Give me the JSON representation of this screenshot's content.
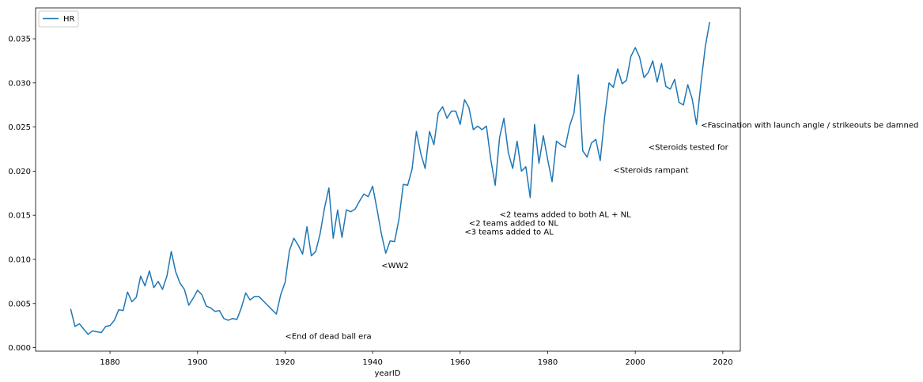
{
  "chart_data": {
    "type": "line",
    "xlabel": "yearID",
    "ylabel": "",
    "xlim": [
      1863,
      2024
    ],
    "ylim": [
      -0.0004,
      0.0385
    ],
    "xticks": [
      1880,
      1900,
      1920,
      1940,
      1960,
      1980,
      2000,
      2020
    ],
    "yticks": [
      0.0,
      0.005,
      0.01,
      0.015,
      0.02,
      0.025,
      0.03,
      0.035
    ],
    "ytick_labels": [
      "0.000",
      "0.005",
      "0.010",
      "0.015",
      "0.020",
      "0.025",
      "0.030",
      "0.035"
    ],
    "grid": false,
    "legend": {
      "position": "top-left",
      "entries": [
        "HR"
      ]
    },
    "color": "#1f77b4",
    "series": [
      {
        "name": "HR",
        "x": [
          1871,
          1872,
          1873,
          1874,
          1875,
          1876,
          1877,
          1878,
          1879,
          1880,
          1881,
          1882,
          1883,
          1884,
          1885,
          1886,
          1887,
          1888,
          1889,
          1890,
          1891,
          1892,
          1893,
          1894,
          1895,
          1896,
          1897,
          1898,
          1899,
          1900,
          1901,
          1902,
          1903,
          1904,
          1905,
          1906,
          1907,
          1908,
          1909,
          1910,
          1911,
          1912,
          1913,
          1914,
          1915,
          1916,
          1917,
          1918,
          1919,
          1920,
          1921,
          1922,
          1923,
          1924,
          1925,
          1926,
          1927,
          1928,
          1929,
          1930,
          1931,
          1932,
          1933,
          1934,
          1935,
          1936,
          1937,
          1938,
          1939,
          1940,
          1941,
          1942,
          1943,
          1944,
          1945,
          1946,
          1947,
          1948,
          1949,
          1950,
          1951,
          1952,
          1953,
          1954,
          1955,
          1956,
          1957,
          1958,
          1959,
          1960,
          1961,
          1962,
          1963,
          1964,
          1965,
          1966,
          1967,
          1968,
          1969,
          1970,
          1971,
          1972,
          1973,
          1974,
          1975,
          1976,
          1977,
          1978,
          1979,
          1980,
          1981,
          1982,
          1983,
          1984,
          1985,
          1986,
          1987,
          1988,
          1989,
          1990,
          1991,
          1992,
          1993,
          1994,
          1995,
          1996,
          1997,
          1998,
          1999,
          2000,
          2001,
          2002,
          2003,
          2004,
          2005,
          2006,
          2007,
          2008,
          2009,
          2010,
          2011,
          2012,
          2013,
          2014,
          2015,
          2016,
          2017
        ],
        "values": [
          0.0044,
          0.0024,
          0.0027,
          0.0021,
          0.0015,
          0.0019,
          0.0018,
          0.0017,
          0.0024,
          0.0025,
          0.0031,
          0.0043,
          0.0042,
          0.0063,
          0.0052,
          0.0057,
          0.0081,
          0.007,
          0.0087,
          0.0068,
          0.0075,
          0.0066,
          0.0081,
          0.0109,
          0.0086,
          0.0073,
          0.0066,
          0.0048,
          0.0056,
          0.0065,
          0.006,
          0.0047,
          0.0045,
          0.0041,
          0.0042,
          0.0033,
          0.0031,
          0.0033,
          0.0032,
          0.0045,
          0.0062,
          0.0054,
          0.0058,
          0.0058,
          0.0053,
          0.0048,
          0.0043,
          0.0038,
          0.006,
          0.0074,
          0.011,
          0.0124,
          0.0116,
          0.0106,
          0.0137,
          0.0104,
          0.0109,
          0.0129,
          0.0158,
          0.0181,
          0.0124,
          0.0156,
          0.0125,
          0.0156,
          0.0154,
          0.0157,
          0.0166,
          0.0174,
          0.0171,
          0.0183,
          0.0157,
          0.0129,
          0.0107,
          0.0121,
          0.012,
          0.0145,
          0.0185,
          0.0184,
          0.0202,
          0.0245,
          0.022,
          0.0203,
          0.0245,
          0.023,
          0.0266,
          0.0273,
          0.026,
          0.0268,
          0.0268,
          0.0253,
          0.0281,
          0.0272,
          0.0247,
          0.0251,
          0.0247,
          0.0251,
          0.0213,
          0.0184,
          0.0238,
          0.026,
          0.0221,
          0.0203,
          0.0234,
          0.02,
          0.0205,
          0.017,
          0.0253,
          0.0209,
          0.024,
          0.0213,
          0.0188,
          0.0234,
          0.023,
          0.0227,
          0.0251,
          0.0266,
          0.0309,
          0.0223,
          0.0216,
          0.0232,
          0.0236,
          0.0212,
          0.0261,
          0.03,
          0.0295,
          0.0316,
          0.0299,
          0.0303,
          0.033,
          0.034,
          0.0329,
          0.0306,
          0.0312,
          0.0325,
          0.0301,
          0.0322,
          0.0296,
          0.0293,
          0.0304,
          0.0278,
          0.0275,
          0.0298,
          0.0282,
          0.0253,
          0.0299,
          0.0341,
          0.0369
        ]
      }
    ],
    "annotations": [
      {
        "x": 1920,
        "y": 0.001,
        "text": "<End of dead ball era"
      },
      {
        "x": 1942,
        "y": 0.009,
        "text": "<WW2"
      },
      {
        "x": 1961,
        "y": 0.0128,
        "text": "<3 teams added to AL"
      },
      {
        "x": 1962,
        "y": 0.0138,
        "text": "<2 teams added to NL"
      },
      {
        "x": 1969,
        "y": 0.0148,
        "text": "<2 teams added to both AL + NL"
      },
      {
        "x": 1995,
        "y": 0.0198,
        "text": "<Steroids rampant"
      },
      {
        "x": 2003,
        "y": 0.0224,
        "text": "<Steroids tested for"
      },
      {
        "x": 2015,
        "y": 0.0249,
        "text": "<Fascination with launch angle / strikeouts be damned"
      }
    ]
  }
}
